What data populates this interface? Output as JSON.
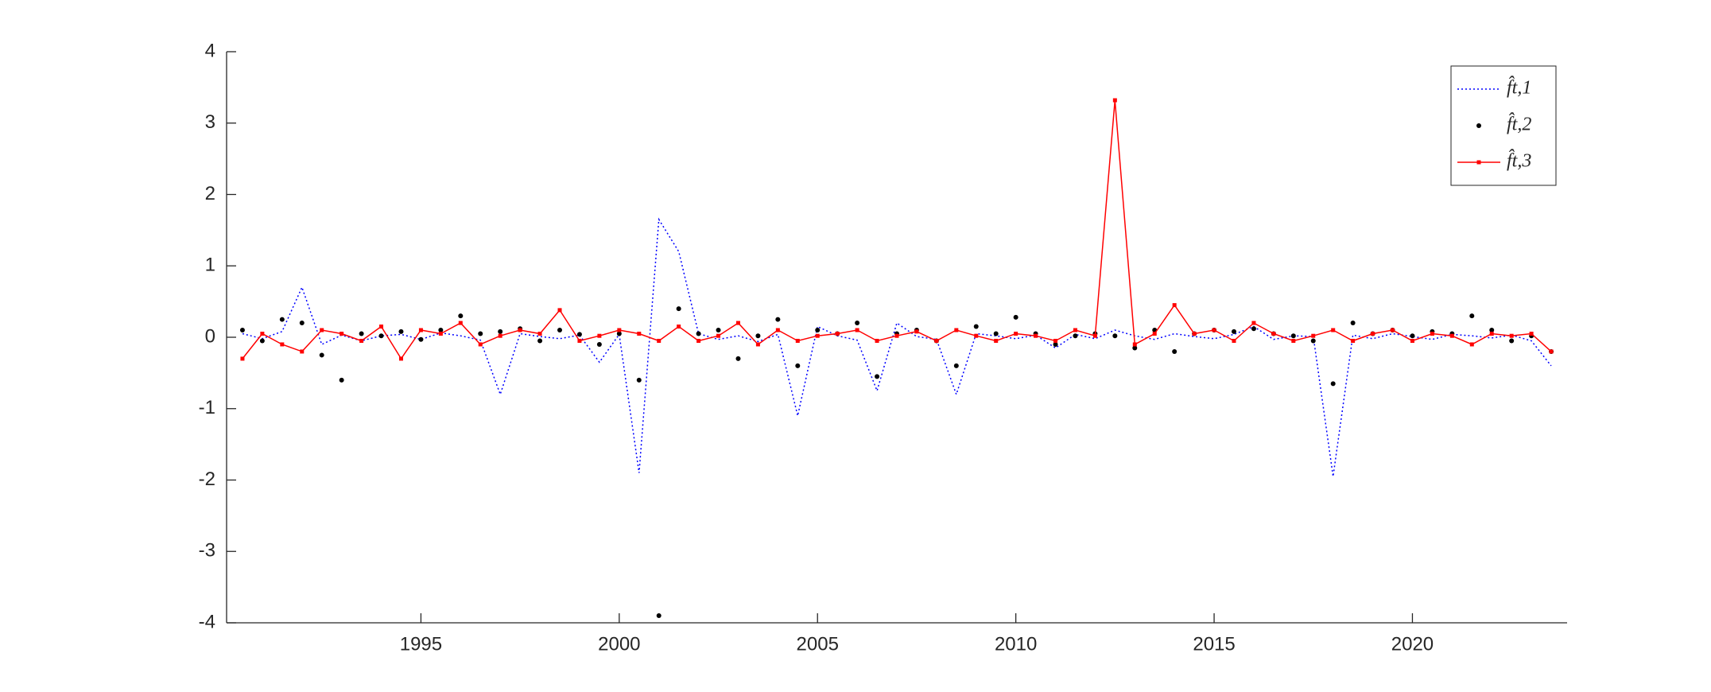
{
  "chart_data": {
    "type": "line",
    "x": [
      1990.5,
      1991,
      1991.5,
      1992,
      1992.5,
      1993,
      1993.5,
      1994,
      1994.5,
      1995,
      1995.5,
      1996,
      1996.5,
      1997,
      1997.5,
      1998,
      1998.5,
      1999,
      1999.5,
      2000,
      2000.5,
      2001,
      2001.5,
      2002,
      2002.5,
      2003,
      2003.5,
      2004,
      2004.5,
      2005,
      2005.5,
      2006,
      2006.5,
      2007,
      2007.5,
      2008,
      2008.5,
      2009,
      2009.5,
      2010,
      2010.5,
      2011,
      2011.5,
      2012,
      2012.5,
      2013,
      2013.5,
      2014,
      2014.5,
      2015,
      2015.5,
      2016,
      2016.5,
      2017,
      2017.5,
      2018,
      2018.5,
      2019,
      2019.5,
      2020,
      2020.5,
      2021,
      2021.5,
      2022,
      2022.5,
      2023,
      2023.5
    ],
    "series": [
      {
        "name": "f̂t,1",
        "color": "#0000ff",
        "linestyle": "dotted",
        "marker": "none",
        "values": [
          0.05,
          -0.02,
          0.08,
          0.7,
          -0.1,
          0.03,
          -0.05,
          0.02,
          0.04,
          -0.03,
          0.06,
          0.02,
          -0.04,
          -0.8,
          0.05,
          0.01,
          -0.02,
          0.03,
          -0.35,
          0.04,
          -1.9,
          1.65,
          1.2,
          0.05,
          -0.03,
          0.02,
          -0.06,
          0.04,
          -1.1,
          0.15,
          0.02,
          -0.04,
          -0.75,
          0.2,
          0.01,
          -0.03,
          -0.8,
          0.05,
          0.02,
          -0.02,
          0.03,
          -0.15,
          0.04,
          -0.02,
          0.1,
          0.02,
          -0.03,
          0.05,
          0.01,
          -0.02,
          0.04,
          0.15,
          -0.03,
          0.02,
          0.01,
          -1.95,
          0.03,
          -0.02,
          0.05,
          0.01,
          -0.03,
          0.04,
          0.02,
          -0.01,
          0.03,
          -0.05,
          -0.4
        ]
      },
      {
        "name": "f̂t,2",
        "color": "#000000",
        "linestyle": "none",
        "marker": "dot",
        "values": [
          0.1,
          -0.05,
          0.25,
          0.2,
          -0.25,
          -0.6,
          0.05,
          0.02,
          0.08,
          -0.03,
          0.1,
          0.3,
          0.05,
          0.08,
          0.12,
          -0.05,
          0.1,
          0.04,
          -0.1,
          0.05,
          -0.6,
          -3.9,
          0.4,
          0.05,
          0.1,
          -0.3,
          0.02,
          0.25,
          -0.4,
          0.1,
          0.05,
          0.2,
          -0.55,
          0.05,
          0.1,
          -0.05,
          -0.4,
          0.15,
          0.05,
          0.28,
          0.05,
          -0.1,
          0.02,
          0.05,
          0.02,
          -0.15,
          0.1,
          -0.2,
          0.05,
          0.1,
          0.08,
          0.12,
          0.05,
          0.02,
          -0.05,
          -0.65,
          0.2,
          0.05,
          0.1,
          0.02,
          0.08,
          0.05,
          0.3,
          0.1,
          -0.05,
          0.02,
          -0.2
        ]
      },
      {
        "name": "f̂t,3",
        "color": "#ff0000",
        "linestyle": "solid",
        "marker": "square",
        "values": [
          -0.3,
          0.05,
          -0.1,
          -0.2,
          0.1,
          0.05,
          -0.05,
          0.15,
          -0.3,
          0.1,
          0.05,
          0.2,
          -0.1,
          0.02,
          0.1,
          0.05,
          0.38,
          -0.05,
          0.02,
          0.1,
          0.05,
          -0.05,
          0.15,
          -0.05,
          0.02,
          0.2,
          -0.1,
          0.1,
          -0.05,
          0.02,
          0.05,
          0.1,
          -0.05,
          0.02,
          0.08,
          -0.05,
          0.1,
          0.02,
          -0.05,
          0.05,
          0.02,
          -0.05,
          0.1,
          0.02,
          3.32,
          -0.1,
          0.05,
          0.45,
          0.05,
          0.1,
          -0.05,
          0.2,
          0.05,
          -0.05,
          0.02,
          0.1,
          -0.05,
          0.05,
          0.1,
          -0.05,
          0.05,
          0.02,
          -0.1,
          0.05,
          0.02,
          0.05,
          -0.2
        ]
      }
    ],
    "xlim": [
      1990.1,
      2023.9
    ],
    "xticks": [
      1995,
      2000,
      2005,
      2010,
      2015,
      2020
    ],
    "ylim": [
      -4,
      4
    ],
    "yticks": [
      -4,
      -3,
      -2,
      -1,
      0,
      1,
      2,
      3,
      4
    ],
    "grid": false,
    "legend": "upper right"
  }
}
